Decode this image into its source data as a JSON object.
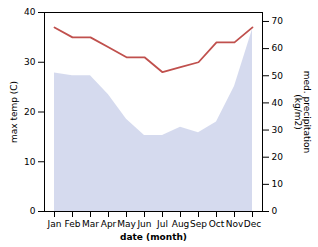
{
  "chart_data": {
    "type": "line",
    "xlabel": "date (month)",
    "ylabel": "max temp (C)",
    "y2label": "med. precipitation\n(kg/m2)",
    "categories": [
      "Jan",
      "Feb",
      "Mar",
      "Apr",
      "May",
      "Jun",
      "Jul",
      "Aug",
      "Sep",
      "Oct",
      "Nov",
      "Dec"
    ],
    "series": [
      {
        "type": "area",
        "axis": "y2",
        "color": "#b3bce0",
        "values": [
          51,
          50,
          50,
          43,
          34,
          28,
          28,
          31,
          29,
          33,
          46,
          67
        ]
      },
      {
        "type": "line",
        "color": "#c0504d",
        "values": [
          37,
          35,
          35,
          33,
          31,
          31,
          28,
          29,
          30,
          34,
          34,
          37
        ]
      }
    ],
    "ylim": [
      0,
      40
    ],
    "yticks": [
      0,
      10,
      20,
      30,
      40
    ],
    "y2lim": [
      0,
      73.3
    ],
    "y2ticks": [
      0,
      10,
      20,
      30,
      40,
      50,
      60,
      70
    ]
  }
}
